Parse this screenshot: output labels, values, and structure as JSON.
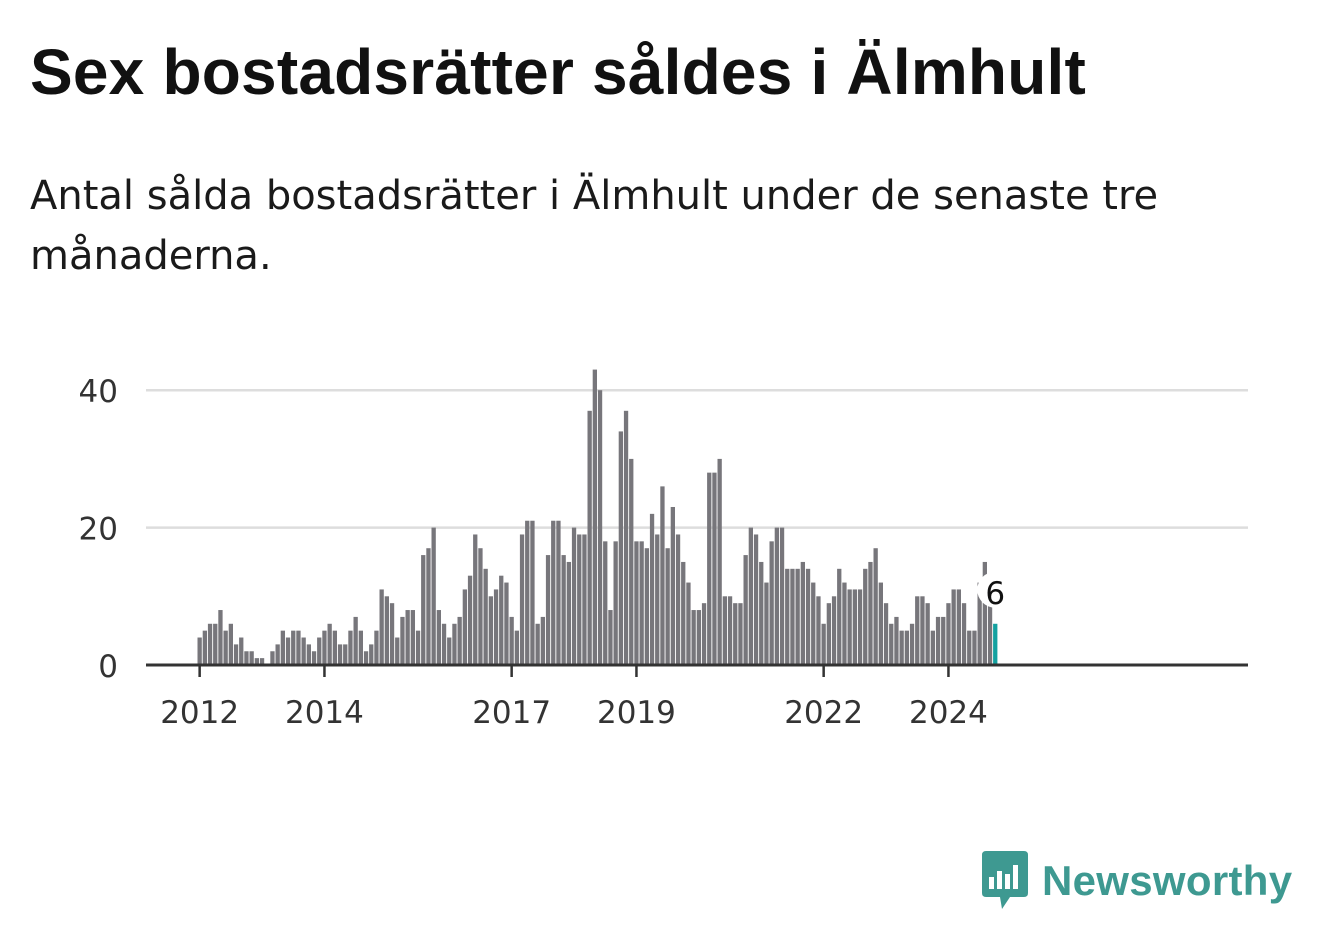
{
  "header": {
    "title": "Sex bostadsrätter såldes i Älmhult",
    "subtitle": "Antal sålda bostadsrätter i Älmhult under de senaste tre månaderna."
  },
  "brand": {
    "name": "Newsworthy",
    "icon": "newsworthy-logo-icon",
    "color": "#3e9991"
  },
  "colors": {
    "bar": "#77767b",
    "highlight": "#14a1a0",
    "grid": "#dddddd",
    "axis": "#333333"
  },
  "chart_data": {
    "type": "bar",
    "x_start": "2012-01",
    "interval": "month",
    "x_ticks": [
      "2012",
      "2014",
      "2017",
      "2019",
      "2022",
      "2024"
    ],
    "y_ticks": [
      "0",
      "20",
      "40"
    ],
    "ylim": [
      0,
      43
    ],
    "grid": true,
    "values": [
      4,
      5,
      6,
      6,
      8,
      5,
      6,
      3,
      4,
      2,
      2,
      1,
      1,
      0,
      2,
      3,
      5,
      4,
      5,
      5,
      4,
      3,
      2,
      4,
      5,
      6,
      5,
      3,
      3,
      5,
      7,
      5,
      2,
      3,
      5,
      11,
      10,
      9,
      4,
      7,
      8,
      8,
      5,
      16,
      17,
      20,
      8,
      6,
      4,
      6,
      7,
      11,
      13,
      19,
      17,
      14,
      10,
      11,
      13,
      12,
      7,
      5,
      19,
      21,
      21,
      6,
      7,
      16,
      21,
      21,
      16,
      15,
      20,
      19,
      19,
      37,
      43,
      40,
      18,
      8,
      18,
      34,
      37,
      30,
      18,
      18,
      17,
      22,
      19,
      26,
      17,
      23,
      19,
      15,
      12,
      8,
      8,
      9,
      28,
      28,
      30,
      10,
      10,
      9,
      9,
      16,
      20,
      19,
      15,
      12,
      18,
      20,
      20,
      14,
      14,
      14,
      15,
      14,
      12,
      10,
      6,
      9,
      10,
      14,
      12,
      11,
      11,
      11,
      14,
      15,
      17,
      12,
      9,
      6,
      7,
      5,
      5,
      6,
      10,
      10,
      9,
      5,
      7,
      7,
      9,
      11,
      11,
      9,
      5,
      5,
      12,
      15,
      9,
      6
    ],
    "highlight_label": "6"
  }
}
